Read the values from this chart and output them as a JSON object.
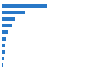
{
  "values": [
    293564,
    148026,
    86000,
    67000,
    40000,
    28000,
    22000,
    18000,
    14000,
    9000
  ],
  "bar_color": "#2878c8",
  "background_color": "#ffffff",
  "grid_color": "#e0e0e0",
  "figsize": [
    1.0,
    0.71
  ],
  "dpi": 100,
  "bar_height": 0.55,
  "xlim_factor": 1.55
}
